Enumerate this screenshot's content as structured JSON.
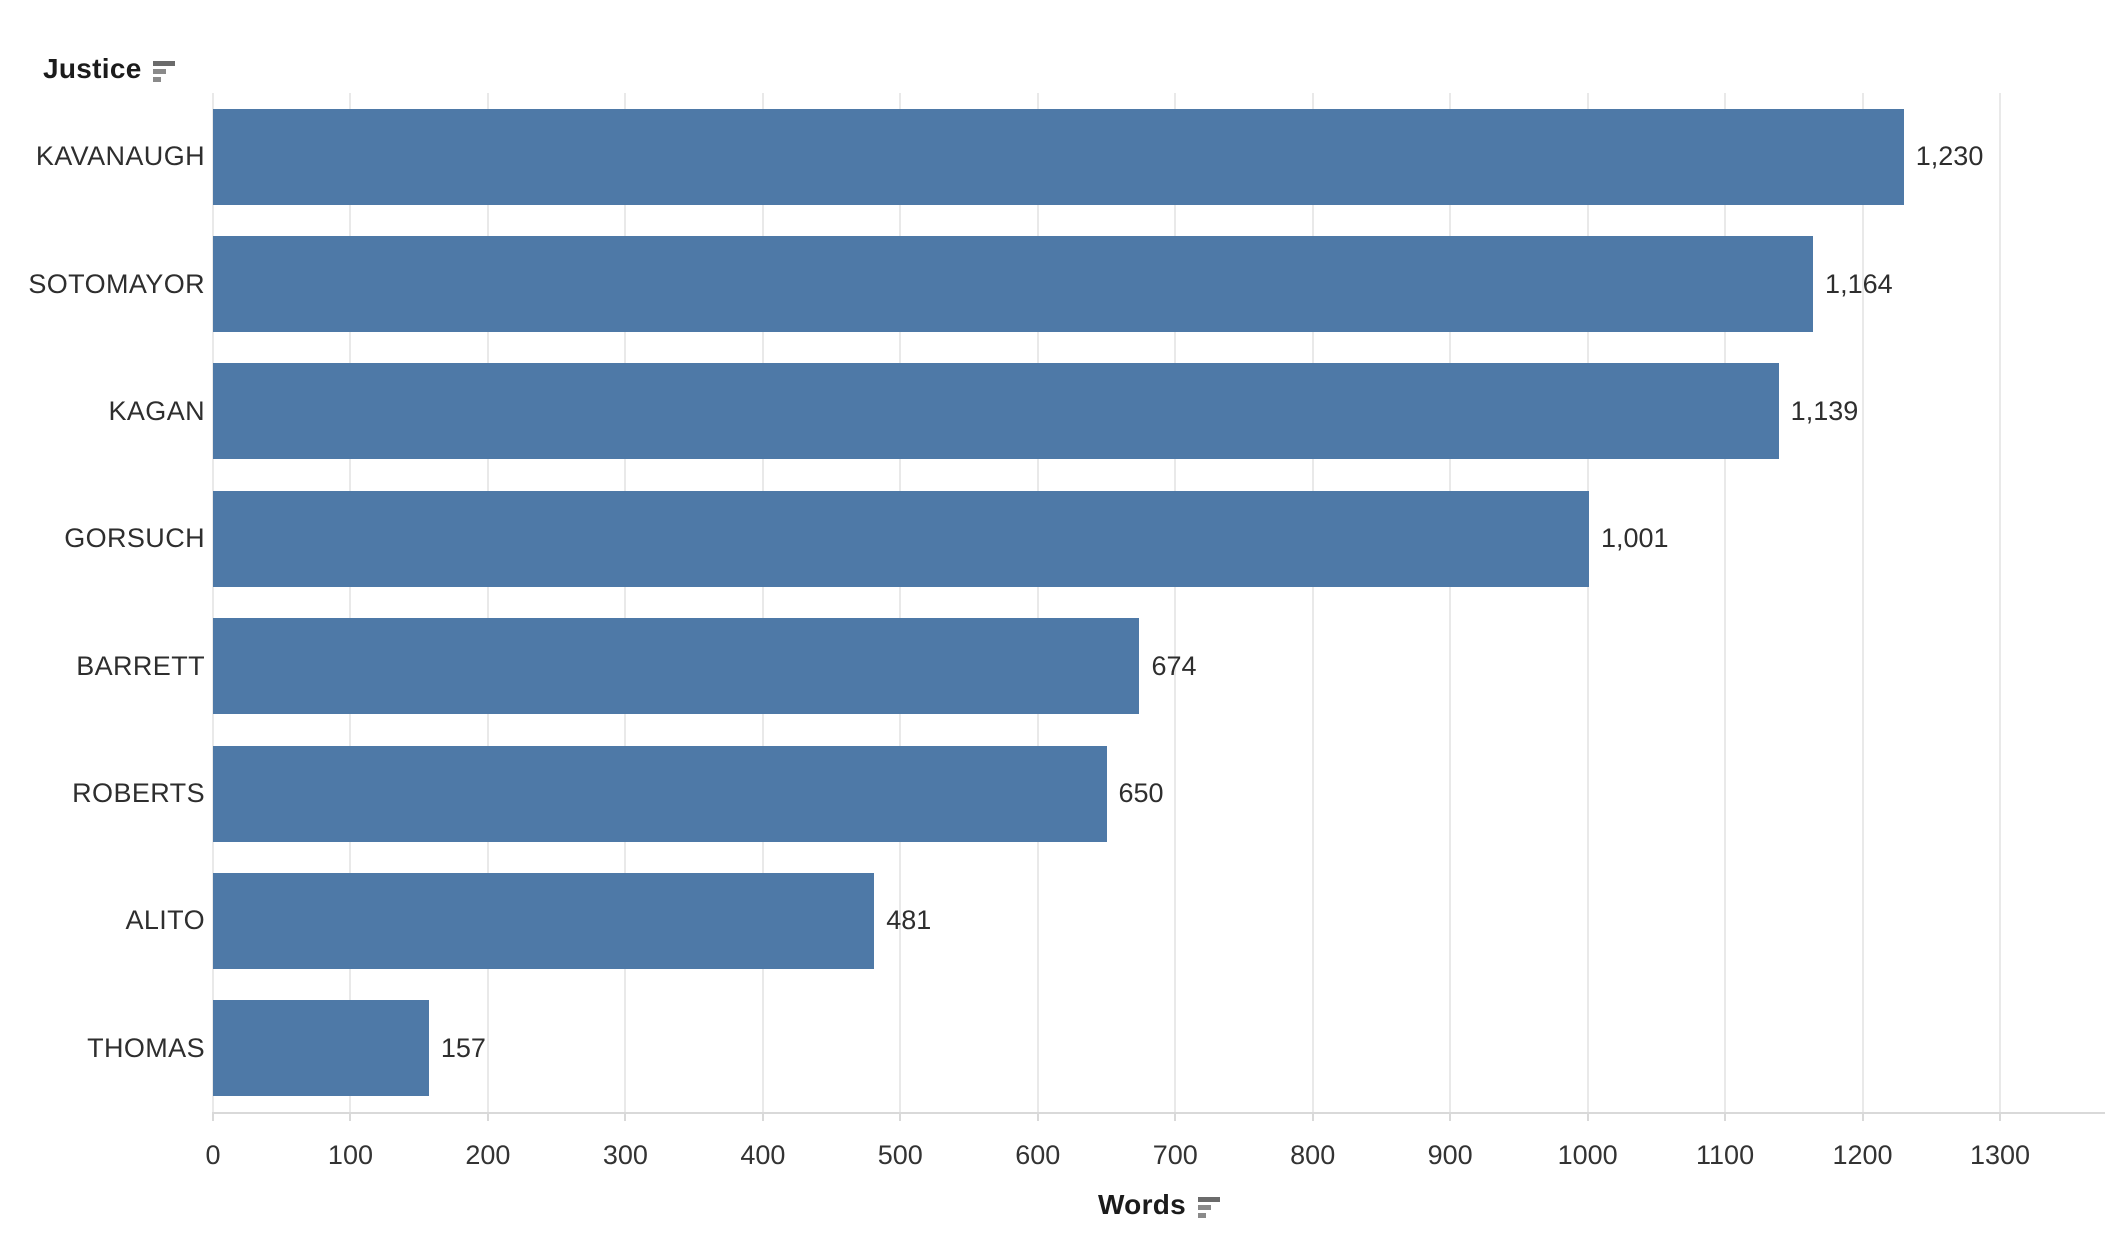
{
  "accent_color": "#4e79a7",
  "icons": {
    "y_axis_sort": "sort-descending-icon",
    "x_axis_sort": "sort-descending-icon"
  },
  "chart_data": {
    "type": "bar",
    "orientation": "horizontal",
    "title": "",
    "ylabel": "Justice",
    "xlabel": "Words",
    "categories": [
      "KAVANAUGH",
      "SOTOMAYOR",
      "KAGAN",
      "GORSUCH",
      "BARRETT",
      "ROBERTS",
      "ALITO",
      "THOMAS"
    ],
    "values": [
      1230,
      1164,
      1139,
      1001,
      674,
      650,
      481,
      157
    ],
    "value_labels": [
      "1,230",
      "1,164",
      "1,139",
      "1,001",
      "674",
      "650",
      "481",
      "157"
    ],
    "xlim": [
      0,
      1300
    ],
    "xticks": [
      0,
      100,
      200,
      300,
      400,
      500,
      600,
      700,
      800,
      900,
      1000,
      1100,
      1200,
      1300
    ],
    "xtick_labels": [
      "0",
      "100",
      "200",
      "300",
      "400",
      "500",
      "600",
      "700",
      "800",
      "900",
      "1000",
      "1100",
      "1200",
      "1300"
    ],
    "grid": true,
    "legend": false,
    "sort_order": "descending",
    "bar_color": "#4e79a7",
    "value_label_position": "end-of-bar"
  }
}
